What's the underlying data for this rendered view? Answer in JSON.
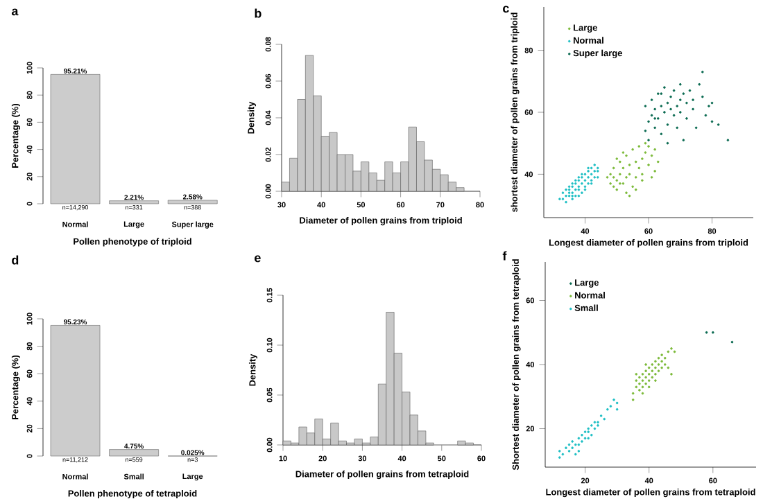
{
  "chart_data": [
    {
      "type": "bar",
      "title": "a",
      "xlabel": "Pollen phenotype of triploid",
      "ylabel": "Percentage (%)",
      "categories": [
        "Normal",
        "Large",
        "Super large"
      ],
      "values": [
        95.21,
        2.21,
        2.58
      ],
      "value_labels": [
        "95.21%",
        "2.21%",
        "2.58%"
      ],
      "color": "#cccccc",
      "ylim": [
        0,
        100
      ],
      "yticks": [
        0,
        20,
        40,
        60,
        80,
        100
      ],
      "annotations": [
        {
          "text": "n=14,290",
          "x": "Normal",
          "y": 0
        },
        {
          "text": "n=331",
          "x": "Large",
          "y": 0
        },
        {
          "text": "n=388",
          "x": "Super large",
          "y": 0
        }
      ]
    },
    {
      "type": "histogram",
      "title": "b",
      "xlabel": "Diameter of pollen grains from triploid",
      "ylabel": "Density",
      "color": "#c8c8c8",
      "bins": [
        30,
        32,
        34,
        36,
        38,
        40,
        42,
        44,
        46,
        48,
        50,
        52,
        54,
        56,
        58,
        60,
        62,
        64,
        66,
        68,
        70,
        72,
        74,
        76
      ],
      "values": [
        0.005,
        0.018,
        0.05,
        0.074,
        0.052,
        0.03,
        0.032,
        0.02,
        0.02,
        0.011,
        0.016,
        0.01,
        0.006,
        0.016,
        0.01,
        0.016,
        0.035,
        0.027,
        0.017,
        0.012,
        0.009,
        0.005,
        0.002
      ],
      "xlim": [
        30,
        80
      ],
      "xticks": [
        30,
        40,
        50,
        60,
        70,
        80
      ],
      "ylim": [
        0,
        0.08
      ],
      "yticks": [
        {
          "value": 0,
          "label": "0.00"
        },
        {
          "value": 0.02,
          "label": "0.02"
        },
        {
          "value": 0.04,
          "label": "0.04"
        },
        {
          "value": 0.06,
          "label": "0.06"
        },
        {
          "value": 0.08,
          "label": "0.08"
        }
      ]
    },
    {
      "type": "scatter",
      "title": "c",
      "xlabel": "Longest diameter of pollen grains from triploid",
      "ylabel": "shortest diameter of pollen grains from triploid",
      "legend": "top left",
      "marker": "circle",
      "xlim": [
        27,
        93
      ],
      "xticks": [
        40,
        60,
        80
      ],
      "ylim": [
        26,
        94
      ],
      "yticks": [
        40,
        60,
        80
      ],
      "series": [
        {
          "name": "Large",
          "color": "#7cba3a",
          "x": [
            47,
            48,
            48,
            49,
            49,
            50,
            50,
            51,
            51,
            52,
            52,
            53,
            53,
            54,
            54,
            55,
            55,
            56,
            56,
            57,
            57,
            58,
            58,
            59,
            60,
            60,
            61,
            62,
            62,
            63,
            56,
            52,
            50,
            54,
            58,
            61,
            59,
            53,
            49,
            51
          ],
          "values": [
            39,
            37,
            40,
            36,
            42,
            38,
            35,
            40,
            44,
            37,
            42,
            34,
            46,
            40,
            43,
            36,
            48,
            44,
            39,
            42,
            49,
            45,
            40,
            47,
            43,
            49,
            46,
            41,
            48,
            44,
            35,
            47,
            45,
            33,
            38,
            39,
            50,
            39,
            39,
            37
          ]
        },
        {
          "name": "Normal",
          "color": "#1fbfc4",
          "x": [
            33,
            34,
            35,
            33,
            36,
            37,
            35,
            38,
            36,
            39,
            37,
            40,
            38,
            41,
            39,
            42,
            40,
            43,
            41,
            44,
            42,
            43,
            34,
            36,
            38,
            40,
            42,
            44,
            35,
            37,
            39,
            41,
            32,
            34,
            36,
            38,
            40,
            39,
            41,
            37,
            35,
            43,
            44,
            42,
            38,
            36
          ],
          "values": [
            32,
            33,
            33,
            34,
            34,
            35,
            35,
            36,
            36,
            37,
            37,
            38,
            38,
            39,
            39,
            40,
            40,
            41,
            41,
            42,
            42,
            43,
            31,
            32,
            33,
            35,
            37,
            39,
            36,
            38,
            40,
            42,
            32,
            35,
            37,
            39,
            36,
            34,
            37,
            33,
            34,
            39,
            41,
            38,
            35,
            33
          ]
        },
        {
          "name": "Super large",
          "color": "#0b6b52",
          "x": [
            59,
            59,
            60,
            60,
            61,
            61,
            62,
            62,
            63,
            63,
            64,
            64,
            65,
            65,
            66,
            66,
            67,
            67,
            68,
            68,
            69,
            69,
            70,
            70,
            71,
            71,
            72,
            72,
            73,
            74,
            75,
            76,
            77,
            77,
            78,
            79,
            80,
            80,
            82,
            85,
            66,
            62,
            64,
            70,
            74
          ],
          "values": [
            54,
            62,
            57,
            51,
            59,
            64,
            55,
            61,
            58,
            66,
            53,
            62,
            60,
            68,
            56,
            63,
            61,
            65,
            59,
            67,
            62,
            55,
            64,
            60,
            66,
            51,
            63,
            58,
            67,
            61,
            55,
            69,
            73,
            65,
            59,
            62,
            57,
            63,
            56,
            51,
            50,
            58,
            66,
            69,
            64
          ]
        }
      ]
    },
    {
      "type": "bar",
      "title": "d",
      "xlabel": "Pollen phenotype of tetraploid",
      "ylabel": "Percentage (%)",
      "categories": [
        "Normal",
        "Small",
        "Large"
      ],
      "values": [
        95.23,
        4.75,
        0.025
      ],
      "value_labels": [
        "95.23%",
        "4.75%",
        "0.025%"
      ],
      "color": "#cccccc",
      "ylim": [
        0,
        100
      ],
      "yticks": [
        0,
        20,
        40,
        60,
        80,
        100
      ],
      "annotations": [
        {
          "text": "n=11,212",
          "x": "Normal",
          "y": 0
        },
        {
          "text": "n=559",
          "x": "Small",
          "y": 0
        },
        {
          "text": "n=3",
          "x": "Large",
          "y": 0
        }
      ]
    },
    {
      "type": "histogram",
      "title": "e",
      "xlabel": "Diameter of pollen grains from tetraploid",
      "ylabel": "Density",
      "color": "#c8c8c8",
      "bins": [
        10,
        12,
        14,
        16,
        18,
        20,
        22,
        24,
        26,
        28,
        30,
        32,
        34,
        36,
        38,
        40,
        42,
        44,
        46,
        48,
        50,
        52,
        54,
        56,
        58
      ],
      "values": [
        0.004,
        0.002,
        0.018,
        0.012,
        0.026,
        0.006,
        0.022,
        0.004,
        0.002,
        0.006,
        0.002,
        0.008,
        0.061,
        0.133,
        0.092,
        0.053,
        0.03,
        0.014,
        0.002,
        0,
        0,
        0,
        0.004,
        0.002
      ],
      "xlim": [
        10,
        60
      ],
      "xticks": [
        10,
        20,
        30,
        40,
        50,
        60
      ],
      "ylim": [
        0,
        0.15
      ],
      "yticks": [
        {
          "value": 0,
          "label": "0.00"
        },
        {
          "value": 0.05,
          "label": "0.05"
        },
        {
          "value": 0.1,
          "label": "0.10"
        },
        {
          "value": 0.15,
          "label": "0.15"
        }
      ]
    },
    {
      "type": "scatter",
      "title": "f",
      "xlabel": "Longest diameter of pollen grains from tetraploid",
      "ylabel": "Shortest diameter of pollen grains from tetraploid",
      "legend": "top left",
      "marker": "circle",
      "xlim": [
        7.5,
        73.5
      ],
      "xticks": [
        20,
        40,
        60
      ],
      "ylim": [
        8,
        72
      ],
      "yticks": [
        20,
        40,
        60
      ],
      "series": [
        {
          "name": "Large",
          "color": "#0b6b52",
          "x": [
            58,
            60,
            66
          ],
          "values": [
            50,
            50,
            47
          ]
        },
        {
          "name": "Normal",
          "color": "#7cba3a",
          "x": [
            35,
            35,
            36,
            36,
            37,
            37,
            37,
            38,
            38,
            38,
            39,
            39,
            39,
            40,
            40,
            40,
            41,
            41,
            41,
            42,
            42,
            42,
            43,
            43,
            43,
            44,
            44,
            44,
            45,
            45,
            46,
            47,
            48,
            47,
            46,
            38,
            40,
            36,
            39,
            42
          ],
          "values": [
            31,
            29,
            33,
            35,
            32,
            34,
            36,
            33,
            35,
            37,
            34,
            36,
            38,
            35,
            37,
            39,
            36,
            38,
            40,
            37,
            39,
            41,
            38,
            40,
            42,
            39,
            41,
            43,
            40,
            42,
            44,
            45,
            44,
            37,
            39,
            31,
            33,
            37,
            40,
            35
          ]
        },
        {
          "name": "Small",
          "color": "#1fbfc4",
          "x": [
            12,
            12,
            13,
            14,
            15,
            15,
            16,
            16,
            17,
            17,
            18,
            18,
            19,
            19,
            20,
            20,
            21,
            21,
            22,
            22,
            23,
            23,
            24,
            24,
            25,
            26,
            27,
            28,
            29,
            30,
            30,
            18,
            21
          ],
          "values": [
            11,
            13,
            12,
            14,
            13,
            15,
            14,
            16,
            12,
            15,
            17,
            15,
            18,
            16,
            19,
            17,
            19,
            20,
            18,
            21,
            22,
            20,
            22,
            21,
            24,
            23,
            26,
            27,
            29,
            26,
            28,
            13,
            17
          ]
        }
      ]
    }
  ]
}
